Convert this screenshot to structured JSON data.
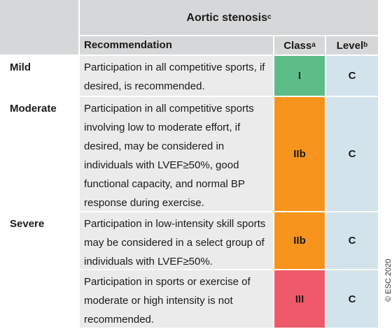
{
  "header": {
    "title": "Aortic stenosis",
    "title_note": "c"
  },
  "columns": [
    {
      "label": "Recommendation"
    },
    {
      "label": "Class",
      "note": "a"
    },
    {
      "label": "Level",
      "note": "b"
    }
  ],
  "rows": [
    {
      "group": "Mild",
      "recommendation": "Participation in all competitive sports, if desired, is recommended.",
      "class": "I",
      "level": "C"
    },
    {
      "group": "Moderate",
      "recommendation": "Participation in all competitive sports involving low to moderate effort, if desired, may be considered in individuals with LVEF≥50%, good functional capacity, and normal BP response during exercise.",
      "class": "IIb",
      "level": "C"
    },
    {
      "group": "Severe",
      "recommendation": "Participation in low-intensity skill sports may be considered in a select group of individuals with LVEF≥50%.",
      "class": "IIb",
      "level": "C"
    },
    {
      "recommendation": "Participation in sports or exercise of moderate or high intensity is not recommended.",
      "class": "III",
      "level": "C"
    }
  ],
  "copyright": "© ESC 2020"
}
